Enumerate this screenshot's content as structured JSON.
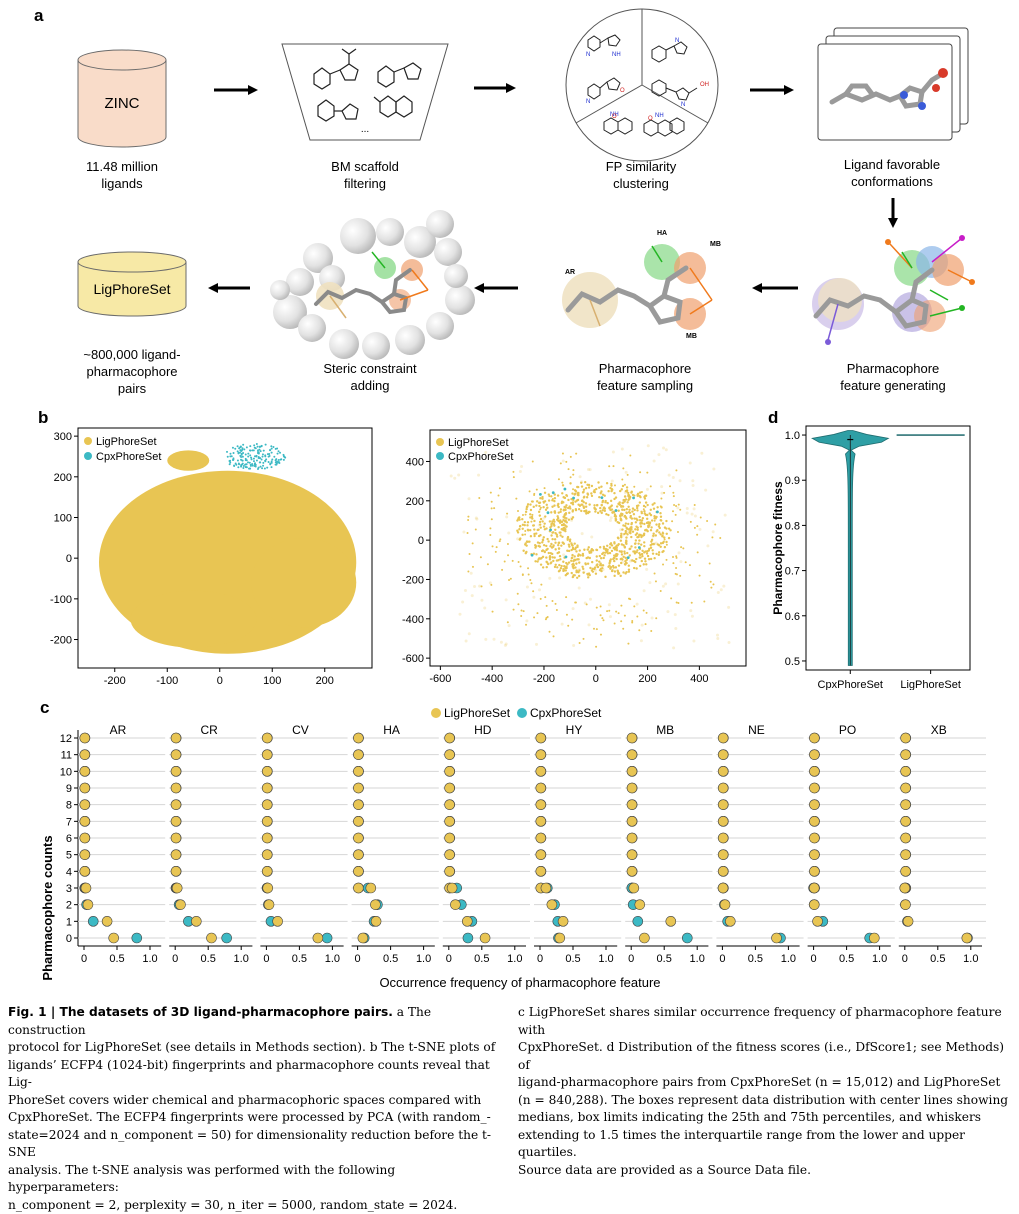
{
  "panels": {
    "a": "a",
    "b": "b",
    "c": "c",
    "d": "d"
  },
  "workflow": {
    "zinc_label": "ZINC",
    "zinc_caption": [
      "11.48 million",
      "ligands"
    ],
    "bm_caption": [
      "BM scaffold",
      "filtering"
    ],
    "bm_ellipsis": "...",
    "fp_caption": [
      "FP similarity",
      "clustering"
    ],
    "conf_caption": [
      "Ligand favorable",
      "conformations"
    ],
    "gen_caption": [
      "Pharmacophore",
      "feature generating"
    ],
    "samp_caption": [
      "Pharmacophore",
      "feature sampling"
    ],
    "steric_caption": [
      "Steric constraint",
      "adding"
    ],
    "ligset_label": "LigPhoreSet",
    "ligset_caption": [
      "~800,000 ligand-",
      "pharmacophore",
      "pairs"
    ],
    "feature_tags": {
      "ha": "HA",
      "mb_top": "MB",
      "ar": "AR",
      "mb_bottom": "MB"
    },
    "atom_labels": {
      "nh": "NH",
      "n": "N",
      "oh": "OH",
      "o": "O"
    }
  },
  "tsne_left": {
    "legend": [
      "LigPhoreSet",
      "CpxPhoreSet"
    ],
    "xticks": [
      -200,
      -100,
      0,
      100,
      200
    ],
    "yticks": [
      300,
      200,
      100,
      0,
      -100,
      -200
    ]
  },
  "tsne_right": {
    "legend": [
      "LigPhoreSet",
      "CpxPhoreSet"
    ],
    "xticks": [
      -600,
      -400,
      -200,
      0,
      200,
      400
    ],
    "yticks": [
      400,
      200,
      0,
      -200,
      -400,
      -600
    ]
  },
  "chart_data": [
    {
      "type": "violin",
      "panel": "d",
      "ylabel": "Pharmacophore fitness",
      "categories": [
        "CpxPhoreSet",
        "LigPhoreSet"
      ],
      "ylim": [
        0.48,
        1.02
      ],
      "yticks": [
        "1.0",
        "0.9",
        "0.8",
        "0.7",
        "0.6",
        "0.5"
      ],
      "series": [
        {
          "name": "CpxPhoreSet",
          "min": 0.49,
          "q1": 0.98,
          "median": 0.99,
          "q3": 1.0,
          "max": 1.0
        },
        {
          "name": "LigPhoreSet",
          "min": 1.0,
          "q1": 1.0,
          "median": 1.0,
          "q3": 1.0,
          "max": 1.0
        }
      ]
    },
    {
      "type": "scatter",
      "panel": "c",
      "xlabel": "Occurrence frequency of pharmacophore feature",
      "ylabel": "Pharmacophore counts",
      "legend": [
        "LigPhoreSet",
        "CpxPhoreSet"
      ],
      "xticks": [
        "0",
        "0.5",
        "1.0"
      ],
      "yticks": [
        12,
        11,
        10,
        9,
        8,
        7,
        6,
        5,
        4,
        3,
        2,
        1,
        0
      ],
      "xlim": [
        0,
        1.0
      ],
      "facets": [
        {
          "name": "AR",
          "lig": [
            0.45,
            0.35,
            0.06,
            0.03
          ],
          "cpx": [
            0.8,
            0.14,
            0.04,
            0.02
          ]
        },
        {
          "name": "CR",
          "lig": [
            0.55,
            0.32,
            0.08,
            0.03
          ],
          "cpx": [
            0.78,
            0.2,
            0.06,
            0.02
          ]
        },
        {
          "name": "CV",
          "lig": [
            0.78,
            0.17,
            0.04,
            0.02
          ],
          "cpx": [
            0.92,
            0.07,
            0.03,
            0.01
          ]
        },
        {
          "name": "HA",
          "lig": [
            0.08,
            0.28,
            0.27,
            0.2
          ],
          "cpx": [
            0.1,
            0.25,
            0.3,
            0.16
          ]
        },
        {
          "name": "HD",
          "lig": [
            0.55,
            0.28,
            0.1,
            0.05
          ],
          "cpx": [
            0.29,
            0.35,
            0.19,
            0.12
          ]
        },
        {
          "name": "HY",
          "lig": [
            0.3,
            0.35,
            0.18,
            0.09
          ],
          "cpx": [
            0.28,
            0.27,
            0.22,
            0.11
          ]
        },
        {
          "name": "MB",
          "lig": [
            0.2,
            0.6,
            0.13,
            0.04
          ],
          "cpx": [
            0.85,
            0.1,
            0.03,
            0.01
          ]
        },
        {
          "name": "NE",
          "lig": [
            0.82,
            0.12,
            0.04,
            0.01
          ],
          "cpx": [
            0.88,
            0.08,
            0.03,
            0.01
          ]
        },
        {
          "name": "PO",
          "lig": [
            0.92,
            0.06,
            0.01,
            0.01
          ],
          "cpx": [
            0.85,
            0.14,
            0.01,
            0.0
          ]
        },
        {
          "name": "XB",
          "lig": [
            0.94,
            0.05,
            0.01,
            0.0
          ],
          "cpx": [
            0.95,
            0.04,
            0.01,
            0.0
          ]
        }
      ]
    }
  ],
  "caption": {
    "left": [
      {
        "bold": "Fig. 1 | The datasets of 3D ligand-pharmacophore pairs.",
        "text": " a The construction"
      },
      {
        "text": "protocol for LigPhoreSet (see details in Methods section). b The t-SNE plots of"
      },
      {
        "text": "ligands’ ECFP4 (1024-bit) fingerprints and pharmacophore counts reveal that Lig-"
      },
      {
        "text": "PhoreSet covers wider chemical and pharmacophoric spaces compared with"
      },
      {
        "text": "CpxPhoreSet. The ECFP4 fingerprints were processed by PCA (with random_-"
      },
      {
        "text": "state=2024 and n_component = 50) for dimensionality reduction before the t-SNE"
      },
      {
        "text": "analysis. The t-SNE analysis was performed with the following hyperparameters:"
      },
      {
        "text": "n_component = 2, perplexity = 30, n_iter = 5000, random_state = 2024."
      }
    ],
    "right": [
      {
        "text": "c LigPhoreSet shares similar occurrence frequency of pharmacophore feature with"
      },
      {
        "text": "CpxPhoreSet. d Distribution of the fitness scores (i.e., DfScore1; see Methods) of"
      },
      {
        "text": "ligand-pharmacophore pairs from CpxPhoreSet (n = 15,012) and LigPhoreSet"
      },
      {
        "text": "(n = 840,288). The boxes represent data distribution with center lines showing"
      },
      {
        "text": "medians, box limits indicating the 25th and 75th percentiles, and whiskers"
      },
      {
        "text": "extending to 1.5 times the interquartile range from the lower and upper quartiles."
      },
      {
        "text": "Source data are provided as a Source Data file."
      }
    ]
  },
  "colors": {
    "lig": "#E8C553",
    "cpx": "#3CB9C4",
    "zinc_fill": "#F9DCC9",
    "ligset_fill": "#F7E9A6",
    "violin": "#2E9FA5"
  }
}
